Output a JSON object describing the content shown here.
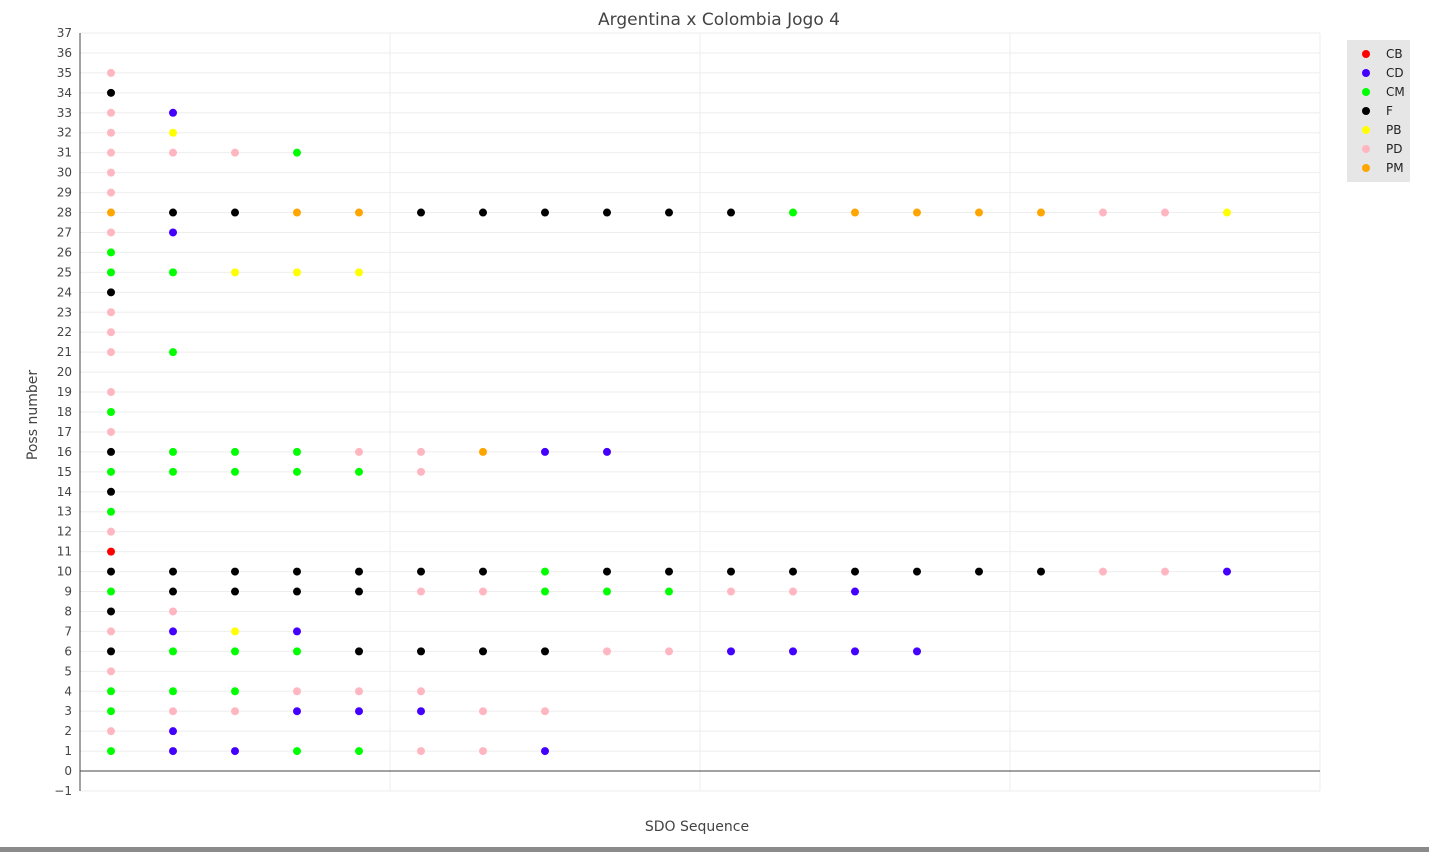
{
  "chart_data": {
    "type": "scatter",
    "title": "Argentina x Colombia Jogo 4",
    "xlabel": "SDO Sequence",
    "ylabel": "Poss number",
    "xlim": [
      0.5,
      20.5
    ],
    "ylim": [
      -1,
      37
    ],
    "y_ticks": [
      -1,
      0,
      1,
      2,
      3,
      4,
      5,
      6,
      7,
      8,
      9,
      10,
      11,
      12,
      13,
      14,
      15,
      16,
      17,
      18,
      19,
      20,
      21,
      22,
      23,
      24,
      25,
      26,
      27,
      28,
      29,
      30,
      31,
      32,
      33,
      34,
      35,
      36,
      37
    ],
    "y_tick_labels": [
      "−1",
      "0",
      "1",
      "2",
      "3",
      "4",
      "5",
      "6",
      "7",
      "8",
      "9",
      "10",
      "11",
      "12",
      "13",
      "14",
      "15",
      "16",
      "17",
      "18",
      "19",
      "20",
      "21",
      "22",
      "23",
      "24",
      "25",
      "26",
      "27",
      "28",
      "29",
      "30",
      "31",
      "32",
      "33",
      "34",
      "35",
      "36",
      "37"
    ],
    "grid": true,
    "legend_position": "top-right",
    "categories": [
      "CB",
      "CD",
      "CM",
      "F",
      "PB",
      "PD",
      "PM"
    ],
    "colors": {
      "CB": "#ff0000",
      "CD": "#4400ff",
      "CM": "#00ff00",
      "F": "#000000",
      "PB": "#ffff00",
      "PD": "#ffb6c1",
      "PM": "#ffa500"
    },
    "points": [
      {
        "poss": 1,
        "seq": [
          "CM",
          "CD",
          "CD",
          "CM",
          "CM",
          "PD",
          "PD",
          "CD"
        ]
      },
      {
        "poss": 2,
        "seq": [
          "PD",
          "CD"
        ]
      },
      {
        "poss": 3,
        "seq": [
          "CM",
          "PD",
          "PD",
          "CD",
          "CD",
          "CD",
          "PD",
          "PD"
        ]
      },
      {
        "poss": 4,
        "seq": [
          "CM",
          "CM",
          "CM",
          "PD",
          "PD",
          "PD"
        ]
      },
      {
        "poss": 5,
        "seq": [
          "PD"
        ]
      },
      {
        "poss": 6,
        "seq": [
          "F",
          "CM",
          "CM",
          "CM",
          "F",
          "F",
          "F",
          "F",
          "PD",
          "PD",
          "CD",
          "CD",
          "CD",
          "CD"
        ]
      },
      {
        "poss": 7,
        "seq": [
          "PD",
          "CD",
          "PB",
          "CD"
        ]
      },
      {
        "poss": 8,
        "seq": [
          "F",
          "PD"
        ]
      },
      {
        "poss": 9,
        "seq": [
          "CM",
          "F",
          "F",
          "F",
          "F",
          "PD",
          "PD",
          "CM",
          "CM",
          "CM",
          "PD",
          "PD",
          "CD"
        ]
      },
      {
        "poss": 10,
        "seq": [
          "F",
          "F",
          "F",
          "F",
          "F",
          "F",
          "F",
          "CM",
          "F",
          "F",
          "F",
          "F",
          "F",
          "F",
          "F",
          "F",
          "PD",
          "PD",
          "CD"
        ]
      },
      {
        "poss": 11,
        "seq": [
          "CB"
        ]
      },
      {
        "poss": 12,
        "seq": [
          "PD"
        ]
      },
      {
        "poss": 13,
        "seq": [
          "CM"
        ]
      },
      {
        "poss": 14,
        "seq": [
          "F"
        ]
      },
      {
        "poss": 15,
        "seq": [
          "CM",
          "CM",
          "CM",
          "CM",
          "CM",
          "PD"
        ]
      },
      {
        "poss": 16,
        "seq": [
          "F",
          "CM",
          "CM",
          "CM",
          "PD",
          "PD",
          "PM",
          "CD",
          "CD"
        ]
      },
      {
        "poss": 17,
        "seq": [
          "PD"
        ]
      },
      {
        "poss": 18,
        "seq": [
          "CM"
        ]
      },
      {
        "poss": 19,
        "seq": [
          "PD"
        ]
      },
      {
        "poss": 21,
        "seq": [
          "PD",
          "CM"
        ]
      },
      {
        "poss": 22,
        "seq": [
          "PD"
        ]
      },
      {
        "poss": 23,
        "seq": [
          "PD"
        ]
      },
      {
        "poss": 24,
        "seq": [
          "F"
        ]
      },
      {
        "poss": 25,
        "seq": [
          "CM",
          "CM",
          "PB",
          "PB",
          "PB"
        ]
      },
      {
        "poss": 26,
        "seq": [
          "CM"
        ]
      },
      {
        "poss": 27,
        "seq": [
          "PD",
          "CD"
        ]
      },
      {
        "poss": 28,
        "seq": [
          "PM",
          "F",
          "F",
          "PM",
          "PM",
          "F",
          "F",
          "F",
          "F",
          "F",
          "F",
          "CM",
          "PM",
          "PM",
          "PM",
          "PM",
          "PD",
          "PD",
          "PB"
        ]
      },
      {
        "poss": 29,
        "seq": [
          "PD"
        ]
      },
      {
        "poss": 30,
        "seq": [
          "PD"
        ]
      },
      {
        "poss": 31,
        "seq": [
          "PD",
          "PD",
          "PD",
          "CM"
        ]
      },
      {
        "poss": 32,
        "seq": [
          "PD",
          "PB"
        ]
      },
      {
        "poss": 33,
        "seq": [
          "PD",
          "CD"
        ]
      },
      {
        "poss": 34,
        "seq": [
          "F"
        ]
      },
      {
        "poss": 35,
        "seq": [
          "PD"
        ]
      }
    ]
  }
}
